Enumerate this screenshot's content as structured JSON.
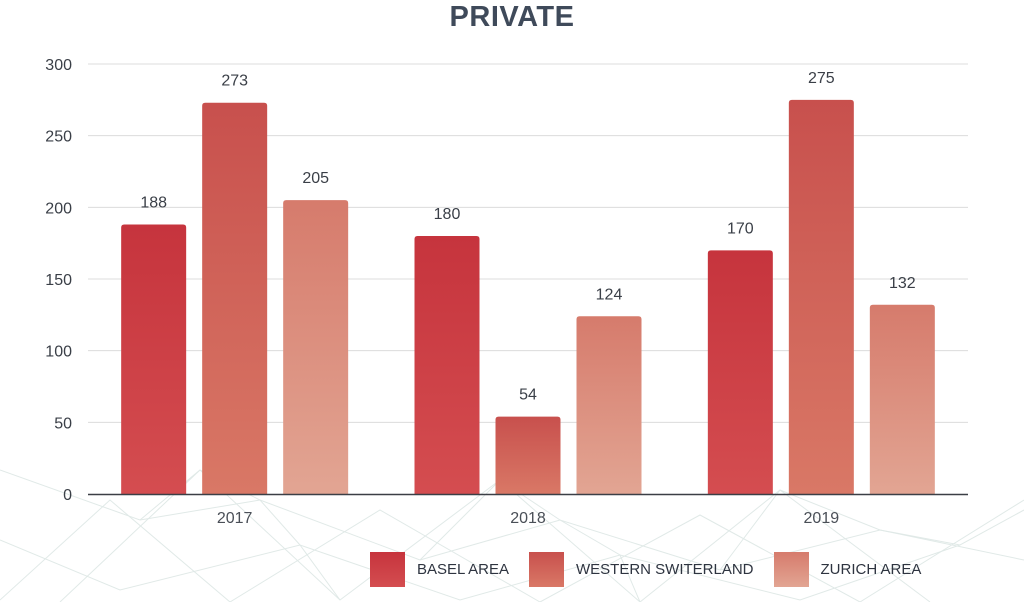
{
  "chart_data": {
    "type": "bar",
    "title": "PRIVATE",
    "categories": [
      "2017",
      "2018",
      "2019"
    ],
    "series": [
      {
        "name": "BASEL AREA",
        "values": [
          188,
          180,
          170
        ],
        "color": "#c6343d",
        "color_light": "#d44d50"
      },
      {
        "name": "WESTERN SWITERLAND",
        "values": [
          273,
          54,
          275
        ],
        "color": "#c8504d",
        "color_light": "#d97866"
      },
      {
        "name": "ZURICH AREA",
        "values": [
          205,
          124,
          132
        ],
        "color": "#d67b6c",
        "color_light": "#e2a593"
      }
    ],
    "yticks": [
      "0",
      "50",
      "100",
      "150",
      "200",
      "250",
      "300"
    ],
    "ylim": [
      0,
      300
    ],
    "grid": true,
    "legend_position": "bottom-right",
    "data_labels": true
  }
}
